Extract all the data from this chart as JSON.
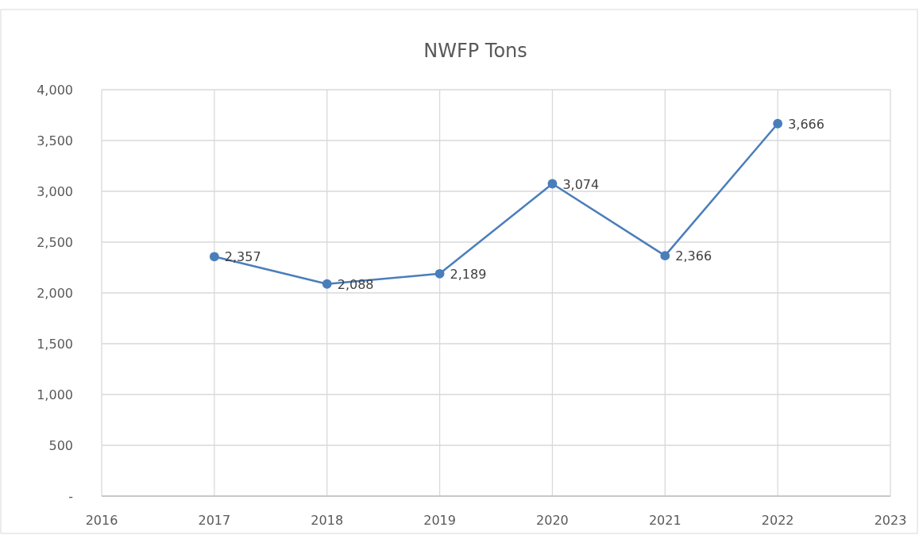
{
  "chart_data": {
    "type": "line",
    "title": "NWFP Tons",
    "x": [
      2017,
      2018,
      2019,
      2020,
      2021,
      2022
    ],
    "series": [
      {
        "color": "#4a7ebb",
        "values": [
          2357,
          2088,
          2189,
          3074,
          2366,
          3666
        ],
        "value_labels": [
          "2,357",
          "2,088",
          "2,189",
          "3,074",
          "2,366",
          "3,666"
        ]
      }
    ],
    "xlim": [
      2016,
      2023
    ],
    "xticks": [
      2016,
      2017,
      2018,
      2019,
      2020,
      2021,
      2022,
      2023
    ],
    "ylim": [
      0,
      4000
    ],
    "yticks": [
      {
        "value": 0,
        "label": "-"
      },
      {
        "value": 500,
        "label": "500"
      },
      {
        "value": 1000,
        "label": "1,000"
      },
      {
        "value": 1500,
        "label": "1,500"
      },
      {
        "value": 2000,
        "label": "2,000"
      },
      {
        "value": 2500,
        "label": "2,500"
      },
      {
        "value": 3000,
        "label": "3,000"
      },
      {
        "value": 3500,
        "label": "3,500"
      },
      {
        "value": 4000,
        "label": "4,000"
      }
    ],
    "grid": true,
    "marker": "circle",
    "line_style": "solid"
  }
}
